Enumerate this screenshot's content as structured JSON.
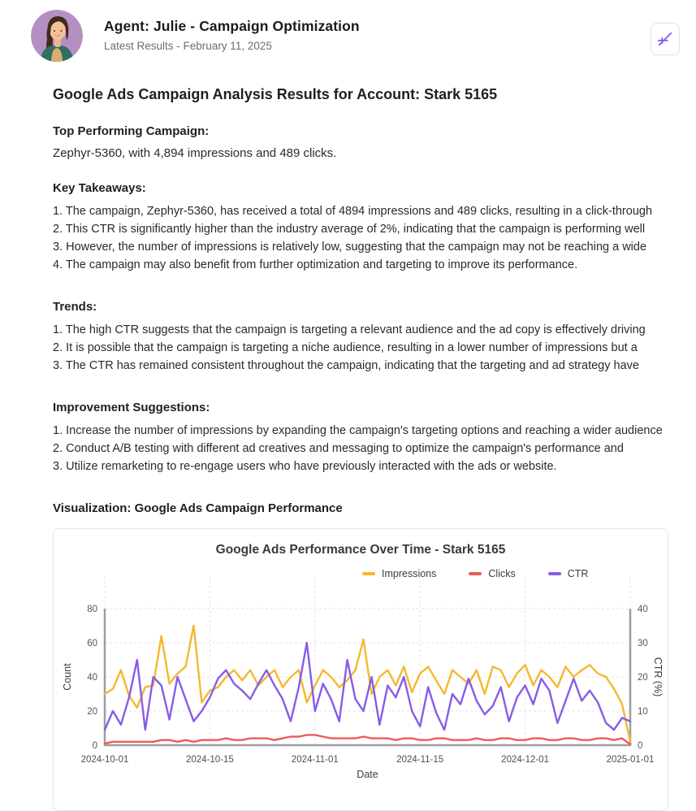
{
  "theme": {
    "accent_purple": "#8b5cf6",
    "card_border": "#e6e6ea",
    "impressions_yellow": "#f5b82d",
    "clicks_red": "#ee5a5a",
    "ctr_purple": "#875ce8"
  },
  "header": {
    "title": "Agent: Julie - Campaign Optimization",
    "subtitle": "Latest Results - February 11, 2025",
    "action_icon": "trend-line-icon"
  },
  "report": {
    "title": "Google Ads Campaign Analysis Results for Account: Stark 5165",
    "top_performing": {
      "heading": "Top Performing Campaign:",
      "text": "Zephyr-5360, with 4,894 impressions and 489 clicks."
    },
    "key_takeaways": {
      "heading": "Key Takeaways:",
      "items": [
        "1. The campaign, Zephyr-5360, has received a total of 4894 impressions and 489 clicks, resulting in a click-through",
        "2. This CTR is significantly higher than the industry average of 2%, indicating that the campaign is performing well",
        "3. However, the number of impressions is relatively low, suggesting that the campaign may not be reaching a wide",
        "4. The campaign may also benefit from further optimization and targeting to improve its performance."
      ]
    },
    "trends": {
      "heading": "Trends:",
      "items": [
        "1. The high CTR suggests that the campaign is targeting a relevant audience and the ad copy is effectively driving",
        "2. It is possible that the campaign is targeting a niche audience, resulting in a lower number of impressions but a",
        "3. The CTR has remained consistent throughout the campaign, indicating that the targeting and ad strategy have"
      ]
    },
    "improvements": {
      "heading": "Improvement Suggestions:",
      "items": [
        "1. Increase the number of impressions by expanding the campaign's targeting options and reaching a wider audience",
        "2. Conduct A/B testing with different ad creatives and messaging to optimize the campaign's performance and",
        "3. Utilize remarketing to re-engage users who have previously interacted with the ads or website."
      ]
    },
    "visualization_heading": "Visualization: Google Ads Campaign Performance"
  },
  "chart_data": {
    "type": "line",
    "title": "Google Ads Performance Over Time - Stark 5165",
    "xlabel": "Date",
    "n_points": 66,
    "x_tick_labels": [
      "2024-10-01",
      "2024-10-15",
      "2024-11-01",
      "2024-11-15",
      "2024-12-01",
      "2025-01-01"
    ],
    "x_tick_indices": [
      0,
      13,
      26,
      39,
      52,
      65
    ],
    "y_left": {
      "label": "Count",
      "min": 0,
      "max": 80,
      "ticks": [
        0,
        20,
        40,
        60,
        80
      ]
    },
    "y_right": {
      "label": "CTR (%)",
      "min": 0,
      "max": 40,
      "ticks": [
        0,
        10,
        20,
        30,
        40
      ]
    },
    "grid": true,
    "legend_position": "top",
    "series": [
      {
        "name": "Impressions",
        "axis": "left",
        "color": "#f5b82d",
        "values": [
          30,
          33,
          44,
          29,
          22,
          34,
          35,
          64,
          36,
          42,
          46,
          70,
          25,
          32,
          34,
          40,
          44,
          38,
          44,
          35,
          40,
          44,
          34,
          40,
          44,
          25,
          35,
          44,
          40,
          34,
          38,
          44,
          62,
          30,
          40,
          44,
          35,
          46,
          31,
          42,
          46,
          38,
          30,
          44,
          40,
          36,
          44,
          30,
          46,
          44,
          34,
          42,
          47,
          35,
          44,
          40,
          34,
          46,
          40,
          44,
          47,
          42,
          40,
          33,
          24,
          2
        ]
      },
      {
        "name": "Clicks",
        "axis": "left",
        "color": "#ee5a5a",
        "values": [
          1,
          2,
          2,
          2,
          2,
          2,
          2,
          3,
          3,
          2,
          3,
          2,
          3,
          3,
          3,
          4,
          3,
          3,
          4,
          4,
          4,
          3,
          4,
          5,
          5,
          6,
          6,
          5,
          4,
          4,
          4,
          4,
          5,
          4,
          4,
          4,
          3,
          4,
          4,
          3,
          3,
          4,
          4,
          3,
          3,
          3,
          4,
          3,
          3,
          4,
          4,
          3,
          3,
          4,
          4,
          3,
          3,
          4,
          4,
          3,
          3,
          4,
          4,
          3,
          4,
          0.5
        ]
      },
      {
        "name": "CTR",
        "axis": "right",
        "color": "#875ce8",
        "values": [
          4.5,
          10,
          6,
          14,
          25,
          4.5,
          20,
          17.5,
          7.5,
          20,
          13.5,
          7,
          10,
          14,
          19.5,
          22,
          18,
          16,
          13.5,
          18,
          22,
          17.5,
          13.5,
          7,
          17,
          30,
          10,
          18,
          13.5,
          7,
          25,
          13.5,
          10,
          20,
          6,
          17.5,
          14,
          20,
          10,
          5.5,
          17,
          9.5,
          4.5,
          15,
          12,
          19.5,
          13,
          9,
          11.5,
          17,
          7,
          14,
          17.5,
          12,
          19.5,
          16,
          6.5,
          13,
          19.5,
          13,
          16,
          12.5,
          6.5,
          4.5,
          8,
          7
        ]
      }
    ]
  }
}
